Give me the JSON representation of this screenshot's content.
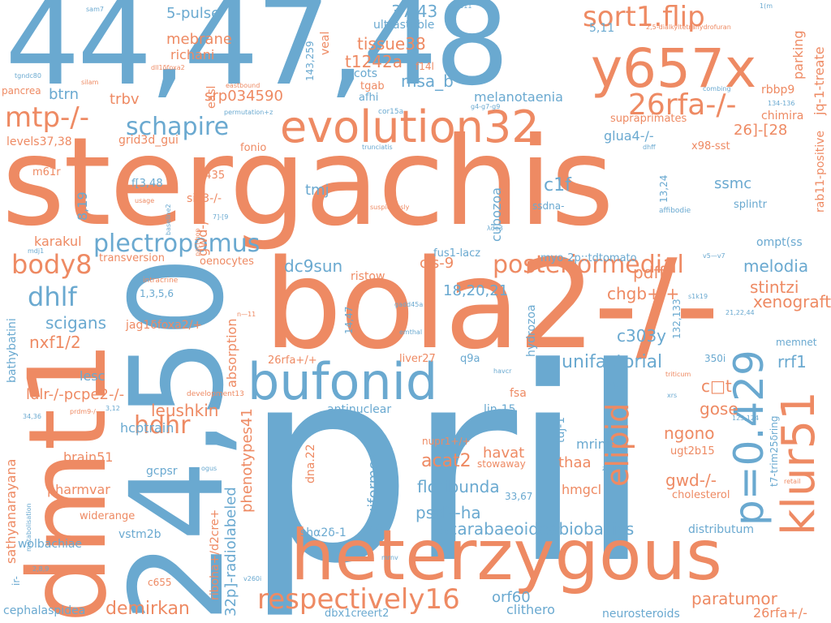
{
  "colors": {
    "blue": "#6aa9d0",
    "orange": "#ee8a63",
    "background": "#ffffff"
  },
  "words": [
    {
      "text": "44,47,48",
      "color": "blue"
    },
    {
      "text": "stergachis",
      "color": "orange"
    },
    {
      "text": "pril",
      "color": "blue"
    },
    {
      "text": "bola2-/-",
      "color": "orange"
    },
    {
      "text": "24,50",
      "color": "blue"
    },
    {
      "text": "dmt1",
      "color": "orange"
    },
    {
      "text": "heterzygous",
      "color": "orange"
    },
    {
      "text": "bufonid",
      "color": "blue"
    },
    {
      "text": "evolution32",
      "color": "orange"
    },
    {
      "text": "y657x",
      "color": "orange"
    },
    {
      "text": "p=0.429",
      "color": "blue"
    },
    {
      "text": "klur51",
      "color": "orange"
    },
    {
      "text": "respectively16",
      "color": "orange"
    },
    {
      "text": "posteriormedial",
      "color": "orange"
    },
    {
      "text": "plectropomus",
      "color": "blue"
    },
    {
      "text": "sort1.flip",
      "color": "orange"
    },
    {
      "text": "26rfa-/-",
      "color": "orange"
    },
    {
      "text": "schapire",
      "color": "blue"
    },
    {
      "text": "mtp-/-",
      "color": "orange"
    },
    {
      "text": "body8",
      "color": "orange"
    },
    {
      "text": "dhlf",
      "color": "blue"
    },
    {
      "text": "hdhr",
      "color": "orange"
    },
    {
      "text": "elipid",
      "color": "orange"
    },
    {
      "text": "unifactorial",
      "color": "blue"
    },
    {
      "text": "scarabaeoideabiobasics",
      "color": "blue"
    },
    {
      "text": "leushkin",
      "color": "orange"
    },
    {
      "text": "floribunda",
      "color": "blue"
    },
    {
      "text": "psd2-ha",
      "color": "blue"
    },
    {
      "text": "acat2",
      "color": "orange"
    },
    {
      "text": "demirkan",
      "color": "orange"
    },
    {
      "text": "paratumor",
      "color": "orange"
    },
    {
      "text": "melodia",
      "color": "blue"
    },
    {
      "text": "stintzi",
      "color": "orange"
    },
    {
      "text": "xenografte",
      "color": "orange"
    },
    {
      "text": "rrf1",
      "color": "blue"
    },
    {
      "text": "c303y",
      "color": "blue"
    },
    {
      "text": "chgb+/+",
      "color": "orange"
    },
    {
      "text": "pdff",
      "color": "orange"
    },
    {
      "text": "ngono",
      "color": "orange"
    },
    {
      "text": "gose",
      "color": "orange"
    },
    {
      "text": "c□t",
      "color": "orange"
    },
    {
      "text": "gwd-/-",
      "color": "orange"
    },
    {
      "text": "havat",
      "color": "orange"
    },
    {
      "text": "thaa",
      "color": "orange"
    },
    {
      "text": "mrinit",
      "color": "blue"
    },
    {
      "text": "hmgcl",
      "color": "orange"
    },
    {
      "text": "orf60",
      "color": "blue"
    },
    {
      "text": "clithero",
      "color": "blue"
    },
    {
      "text": "neurosteroids",
      "color": "blue"
    },
    {
      "text": "26rfa+/-",
      "color": "orange"
    },
    {
      "text": "msa_b",
      "color": "blue"
    },
    {
      "text": "tissue38",
      "color": "orange"
    },
    {
      "text": "t1242a",
      "color": "orange"
    },
    {
      "text": "37,43",
      "color": "blue"
    },
    {
      "text": "5-pulse",
      "color": "blue"
    },
    {
      "text": "mebrane",
      "color": "orange"
    },
    {
      "text": "richani",
      "color": "orange"
    },
    {
      "text": "srp034590",
      "color": "orange"
    },
    {
      "text": "trbv",
      "color": "orange"
    },
    {
      "text": "btrn",
      "color": "blue"
    },
    {
      "text": "melanotaenia",
      "color": "blue"
    },
    {
      "text": "glua4-/-",
      "color": "blue"
    },
    {
      "text": "26]-[28",
      "color": "orange"
    },
    {
      "text": "ssmc",
      "color": "blue"
    },
    {
      "text": "c1f",
      "color": "blue"
    },
    {
      "text": "tmj",
      "color": "blue"
    },
    {
      "text": "cis-9",
      "color": "orange"
    },
    {
      "text": "18,20,21",
      "color": "blue"
    },
    {
      "text": "dc9sun",
      "color": "blue"
    },
    {
      "text": "karakul",
      "color": "orange"
    },
    {
      "text": "scigans",
      "color": "blue"
    },
    {
      "text": "nxf1/2",
      "color": "orange"
    },
    {
      "text": "ldlr-/-pcpe2-/-",
      "color": "orange"
    },
    {
      "text": "lesc",
      "color": "blue"
    },
    {
      "text": "hcptrain",
      "color": "blue"
    },
    {
      "text": "brain51",
      "color": "orange"
    },
    {
      "text": "gcpsr",
      "color": "blue"
    },
    {
      "text": "pharmvar",
      "color": "orange"
    },
    {
      "text": "widerange",
      "color": "orange"
    },
    {
      "text": "vstm2b",
      "color": "blue"
    },
    {
      "text": "wolbachiae",
      "color": "blue"
    },
    {
      "text": "cephalaspidea",
      "color": "blue"
    },
    {
      "text": "ultrastable",
      "color": "blue"
    },
    {
      "text": "cots",
      "color": "blue"
    },
    {
      "text": "tgab",
      "color": "orange"
    },
    {
      "text": "afhi",
      "color": "blue"
    },
    {
      "text": "levels37,38",
      "color": "orange"
    },
    {
      "text": "grid3d_gui",
      "color": "orange"
    },
    {
      "text": "3435",
      "color": "orange"
    },
    {
      "text": "sik3-/-",
      "color": "orange"
    },
    {
      "text": "f[3,48",
      "color": "blue"
    },
    {
      "text": "m61r",
      "color": "orange"
    },
    {
      "text": "pancrea",
      "color": "orange"
    },
    {
      "text": "ompt(ss",
      "color": "blue"
    },
    {
      "text": "splintr",
      "color": "blue"
    },
    {
      "text": "x98-sst",
      "color": "orange"
    },
    {
      "text": "supraprimates",
      "color": "orange"
    },
    {
      "text": "chimira",
      "color": "orange"
    },
    {
      "text": "rbbp9",
      "color": "orange"
    },
    {
      "text": "parking",
      "color": "orange"
    },
    {
      "text": "jq-1-treate",
      "color": "orange"
    },
    {
      "text": "5,11",
      "color": "blue"
    },
    {
      "text": "ristow",
      "color": "orange"
    },
    {
      "text": "fus1-lacz",
      "color": "blue"
    },
    {
      "text": "myo-2p::tdtomato",
      "color": "blue"
    },
    {
      "text": "oenocytes",
      "color": "orange"
    },
    {
      "text": "transversion",
      "color": "orange"
    },
    {
      "text": "liver27",
      "color": "orange"
    },
    {
      "text": "q9a",
      "color": "blue"
    },
    {
      "text": "26rfa+/+",
      "color": "orange"
    },
    {
      "text": "jag1δfoxa2/+",
      "color": "orange"
    },
    {
      "text": "antinuclear",
      "color": "blue"
    },
    {
      "text": "lin-15",
      "color": "blue"
    },
    {
      "text": "fsa",
      "color": "orange"
    },
    {
      "text": "rota",
      "color": "blue"
    },
    {
      "text": "350i",
      "color": "blue"
    },
    {
      "text": "memnet",
      "color": "blue"
    },
    {
      "text": "ugt2b15",
      "color": "orange"
    },
    {
      "text": "cholesterol",
      "color": "orange"
    },
    {
      "text": "distributum",
      "color": "blue"
    },
    {
      "text": "shα2δ-1",
      "color": "blue"
    },
    {
      "text": "nupr1+/+",
      "color": "orange"
    },
    {
      "text": "stowaway",
      "color": "orange"
    },
    {
      "text": "33,67",
      "color": "blue"
    },
    {
      "text": "dbx1creert2",
      "color": "blue"
    },
    {
      "text": "c655",
      "color": "orange"
    },
    {
      "text": "1,3,5,6",
      "color": "blue"
    },
    {
      "text": "intracrine",
      "color": "orange"
    },
    {
      "text": "development13",
      "color": "orange"
    },
    {
      "text": "ssdna-",
      "color": "blue"
    },
    {
      "text": "cor15a",
      "color": "blue"
    },
    {
      "text": "affibodie",
      "color": "blue"
    },
    {
      "text": "f14l",
      "color": "orange"
    },
    {
      "text": "silam",
      "color": "orange"
    },
    {
      "text": "eastbound",
      "color": "orange"
    },
    {
      "text": "permutation+z",
      "color": "blue"
    },
    {
      "text": "g4-g7-g9",
      "color": "blue"
    },
    {
      "text": "134-136",
      "color": "blue"
    },
    {
      "text": "combing",
      "color": "blue"
    },
    {
      "text": "tgndc80",
      "color": "blue"
    },
    {
      "text": "dll1δfoxa2",
      "color": "orange"
    },
    {
      "text": "sam7",
      "color": "blue"
    },
    {
      "text": "pas811",
      "color": "blue"
    },
    {
      "text": "2,5-dialkyltetrahydrofuran",
      "color": "orange"
    },
    {
      "text": "1(m",
      "color": "blue"
    },
    {
      "text": "trunciatis",
      "color": "blue"
    },
    {
      "text": "dhff",
      "color": "blue"
    },
    {
      "text": "usage",
      "color": "orange"
    },
    {
      "text": "suspiciously",
      "color": "orange"
    },
    {
      "text": "λde3",
      "color": "blue"
    },
    {
      "text": "pacl-hop",
      "color": "orange"
    },
    {
      "text": "7]-[9",
      "color": "blue"
    },
    {
      "text": "mdj1",
      "color": "blue"
    },
    {
      "text": "v5—v7",
      "color": "blue"
    },
    {
      "text": "s1k19",
      "color": "blue"
    },
    {
      "text": "gadd45a",
      "color": "blue"
    },
    {
      "text": "emthal",
      "color": "blue"
    },
    {
      "text": "21,22,44",
      "color": "blue"
    },
    {
      "text": "triticum",
      "color": "orange"
    },
    {
      "text": "havcr",
      "color": "blue"
    },
    {
      "text": "xrs",
      "color": "blue"
    },
    {
      "text": "3,12",
      "color": "blue"
    },
    {
      "text": "34,36",
      "color": "blue"
    },
    {
      "text": "prdm9-/-",
      "color": "orange"
    },
    {
      "text": "ogus",
      "color": "blue"
    },
    {
      "text": "z—8",
      "color": "blue"
    },
    {
      "text": "retail",
      "color": "orange"
    },
    {
      "text": "123,124",
      "color": "blue"
    },
    {
      "text": "2,8,9",
      "color": "blue"
    },
    {
      "text": "mrnv",
      "color": "blue"
    },
    {
      "text": "v260i",
      "color": "blue"
    },
    {
      "text": "ir-",
      "color": "blue"
    },
    {
      "text": "8,19",
      "color": "blue"
    },
    {
      "text": "gwd-/-",
      "color": "orange"
    },
    {
      "text": "cubozoa",
      "color": "blue"
    },
    {
      "text": "absorption",
      "color": "orange"
    },
    {
      "text": "phenotypes41",
      "color": "orange"
    },
    {
      "text": "32p]-radiolabeled",
      "color": "blue"
    },
    {
      "text": "riboha+/d2cre+",
      "color": "orange"
    },
    {
      "text": "dna.22",
      "color": "orange"
    },
    {
      "text": "14,47",
      "color": "blue"
    },
    {
      "text": "hydrozoa",
      "color": "blue"
    },
    {
      "text": "gruiformes",
      "color": "blue"
    },
    {
      "text": "tuj-1",
      "color": "blue"
    },
    {
      "text": "132,133",
      "color": "blue"
    },
    {
      "text": "13,24",
      "color": "blue"
    },
    {
      "text": "rab11-positive",
      "color": "orange"
    },
    {
      "text": "t7-trim25δring",
      "color": "blue"
    },
    {
      "text": "sathyanarayana",
      "color": "orange"
    },
    {
      "text": "bathybatini",
      "color": "blue"
    },
    {
      "text": "metabolisation",
      "color": "blue"
    },
    {
      "text": "143,259",
      "color": "blue"
    },
    {
      "text": "veal",
      "color": "orange"
    },
    {
      "text": "easl",
      "color": "orange"
    },
    {
      "text": "fonio",
      "color": "orange"
    },
    {
      "text": "baseline2",
      "color": "blue"
    },
    {
      "text": "n—11",
      "color": "orange"
    }
  ]
}
